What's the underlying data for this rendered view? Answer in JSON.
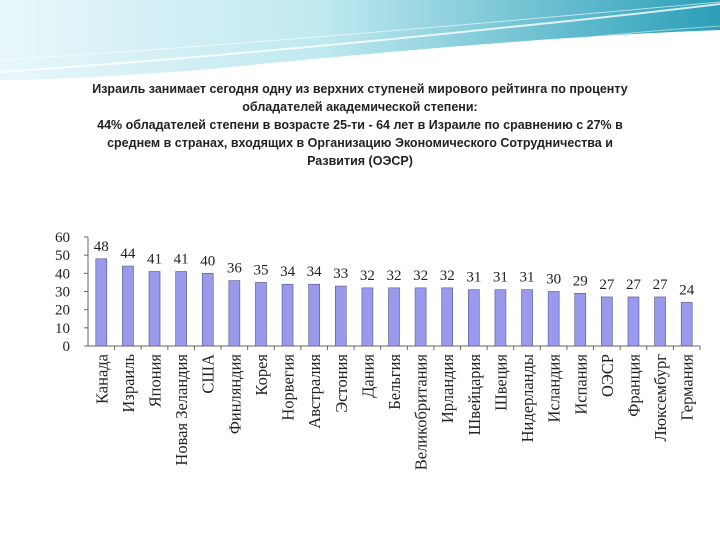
{
  "slide": {
    "heading_lines": [
      "Израиль занимает сегодня одну из верхних ступеней мирового рейтинга по проценту",
      "обладателей академической степени:",
      "44% обладателей степени в возрасте 25-ти - 64 лет в Израиле по сравнению с 27% в",
      "среднем в странах, входящих в Организацию Экономического Сотрудничества и",
      "Развития (ОЭСР)"
    ]
  },
  "colors": {
    "bar_fill": "#9999ee",
    "bar_stroke": "#55557a",
    "banner_light": "#d9f3f7",
    "banner_dark": "#34a8bf"
  },
  "chart_data": {
    "type": "bar",
    "title": "",
    "xlabel": "",
    "ylabel": "",
    "ylim": [
      0,
      60
    ],
    "yticks": [
      "0",
      "10",
      "20",
      "30",
      "40",
      "50",
      "60"
    ],
    "grid": false,
    "categories": [
      "Канада",
      "Израиль",
      "Япония",
      "Новая Зеландия",
      "США",
      "Финляндия",
      "Корея",
      "Норвегия",
      "Австралия",
      "Эстония",
      "Дания",
      "Бельгия",
      "Великобритания",
      "Ирландия",
      "Швейцария",
      "Швеция",
      "Нидерланды",
      "Исландия",
      "Испания",
      "ОЭСР",
      "Франция",
      "Люксембург",
      "Германия"
    ],
    "values": [
      48,
      44,
      41,
      41,
      40,
      36,
      35,
      34,
      34,
      33,
      32,
      32,
      32,
      32,
      31,
      31,
      31,
      30,
      29,
      27,
      27,
      27,
      24
    ]
  }
}
